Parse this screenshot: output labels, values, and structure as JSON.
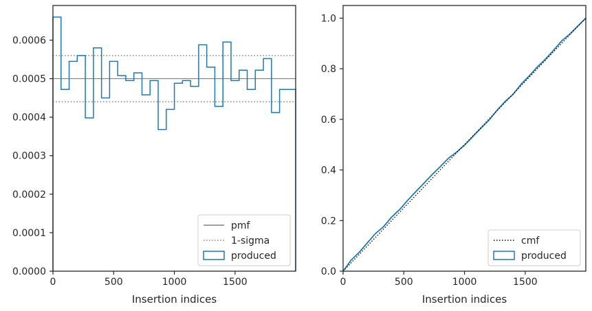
{
  "chart_data": [
    {
      "type": "step",
      "xlabel": "Insertion indices",
      "ylabel": "",
      "xlim": [
        0,
        1999
      ],
      "ylim": [
        0,
        0.00069
      ],
      "x_ticks": [
        0,
        500,
        1000,
        1500
      ],
      "y_ticks": [
        0.0,
        0.0001,
        0.0002,
        0.0003,
        0.0004,
        0.0005,
        0.0006
      ],
      "y_tick_labels": [
        "0.0000",
        "0.0001",
        "0.0002",
        "0.0003",
        "0.0004",
        "0.0005",
        "0.0006"
      ],
      "bin_edges": [
        0,
        66.6,
        133.3,
        200,
        266.6,
        333.3,
        400,
        466.6,
        533.3,
        600,
        666.6,
        733.3,
        800,
        866.6,
        933.3,
        1000,
        1066.6,
        1133.3,
        1200,
        1266.6,
        1333.3,
        1400,
        1466.6,
        1533.3,
        1600,
        1666.6,
        1733.3,
        1800,
        1866.6,
        1933.3,
        1999
      ],
      "series": [
        {
          "name": "produced",
          "kind": "step-histogram",
          "color": "#1f77b4",
          "values": [
            0.00066,
            0.000472,
            0.000545,
            0.00056,
            0.000398,
            0.00058,
            0.00045,
            0.000545,
            0.000508,
            0.000495,
            0.000515,
            0.000458,
            0.000495,
            0.000368,
            0.00042,
            0.000488,
            0.000495,
            0.00048,
            0.000588,
            0.00053,
            0.000428,
            0.000595,
            0.000495,
            0.000522,
            0.000472,
            0.000522,
            0.000552,
            0.000412,
            0.000472,
            0.000472
          ]
        },
        {
          "name": "pmf",
          "kind": "hline",
          "value": 0.0005,
          "color": "#808080",
          "style": "solid"
        },
        {
          "name": "1-sigma",
          "kind": "hline",
          "values": [
            0.00056,
            0.00044
          ],
          "color": "#808080",
          "style": "dotted"
        }
      ],
      "legend": {
        "placement": "lower-right",
        "entries": [
          "pmf",
          "1-sigma",
          "produced"
        ]
      }
    },
    {
      "type": "line",
      "xlabel": "Insertion indices",
      "ylabel": "",
      "xlim": [
        0,
        1999
      ],
      "ylim": [
        0,
        1.05
      ],
      "x_ticks": [
        0,
        500,
        1000,
        1500
      ],
      "y_ticks": [
        0.0,
        0.2,
        0.4,
        0.6,
        0.8,
        1.0
      ],
      "y_tick_labels": [
        "0.0",
        "0.2",
        "0.4",
        "0.6",
        "0.8",
        "1.0"
      ],
      "series": [
        {
          "name": "cmf",
          "kind": "line",
          "color": "#000000",
          "style": "dotted",
          "x": [
            0,
            1999
          ],
          "y": [
            0,
            1.0
          ]
        },
        {
          "name": "produced",
          "kind": "step-cumulative",
          "color": "#1f77b4",
          "x": [
            0,
            66.6,
            133.3,
            200,
            266.6,
            333.3,
            400,
            466.6,
            533.3,
            600,
            666.6,
            733.3,
            800,
            866.6,
            933.3,
            1000,
            1066.6,
            1133.3,
            1200,
            1266.6,
            1333.3,
            1400,
            1466.6,
            1533.3,
            1600,
            1666.6,
            1733.3,
            1800,
            1866.6,
            1933.3,
            1999
          ],
          "y": [
            0,
            0.044,
            0.075,
            0.112,
            0.149,
            0.176,
            0.214,
            0.244,
            0.281,
            0.315,
            0.348,
            0.382,
            0.413,
            0.446,
            0.47,
            0.498,
            0.531,
            0.564,
            0.596,
            0.635,
            0.67,
            0.699,
            0.739,
            0.772,
            0.807,
            0.838,
            0.873,
            0.91,
            0.937,
            0.969,
            1.0
          ]
        }
      ],
      "legend": {
        "placement": "lower-right",
        "entries": [
          "cmf",
          "produced"
        ]
      }
    }
  ]
}
